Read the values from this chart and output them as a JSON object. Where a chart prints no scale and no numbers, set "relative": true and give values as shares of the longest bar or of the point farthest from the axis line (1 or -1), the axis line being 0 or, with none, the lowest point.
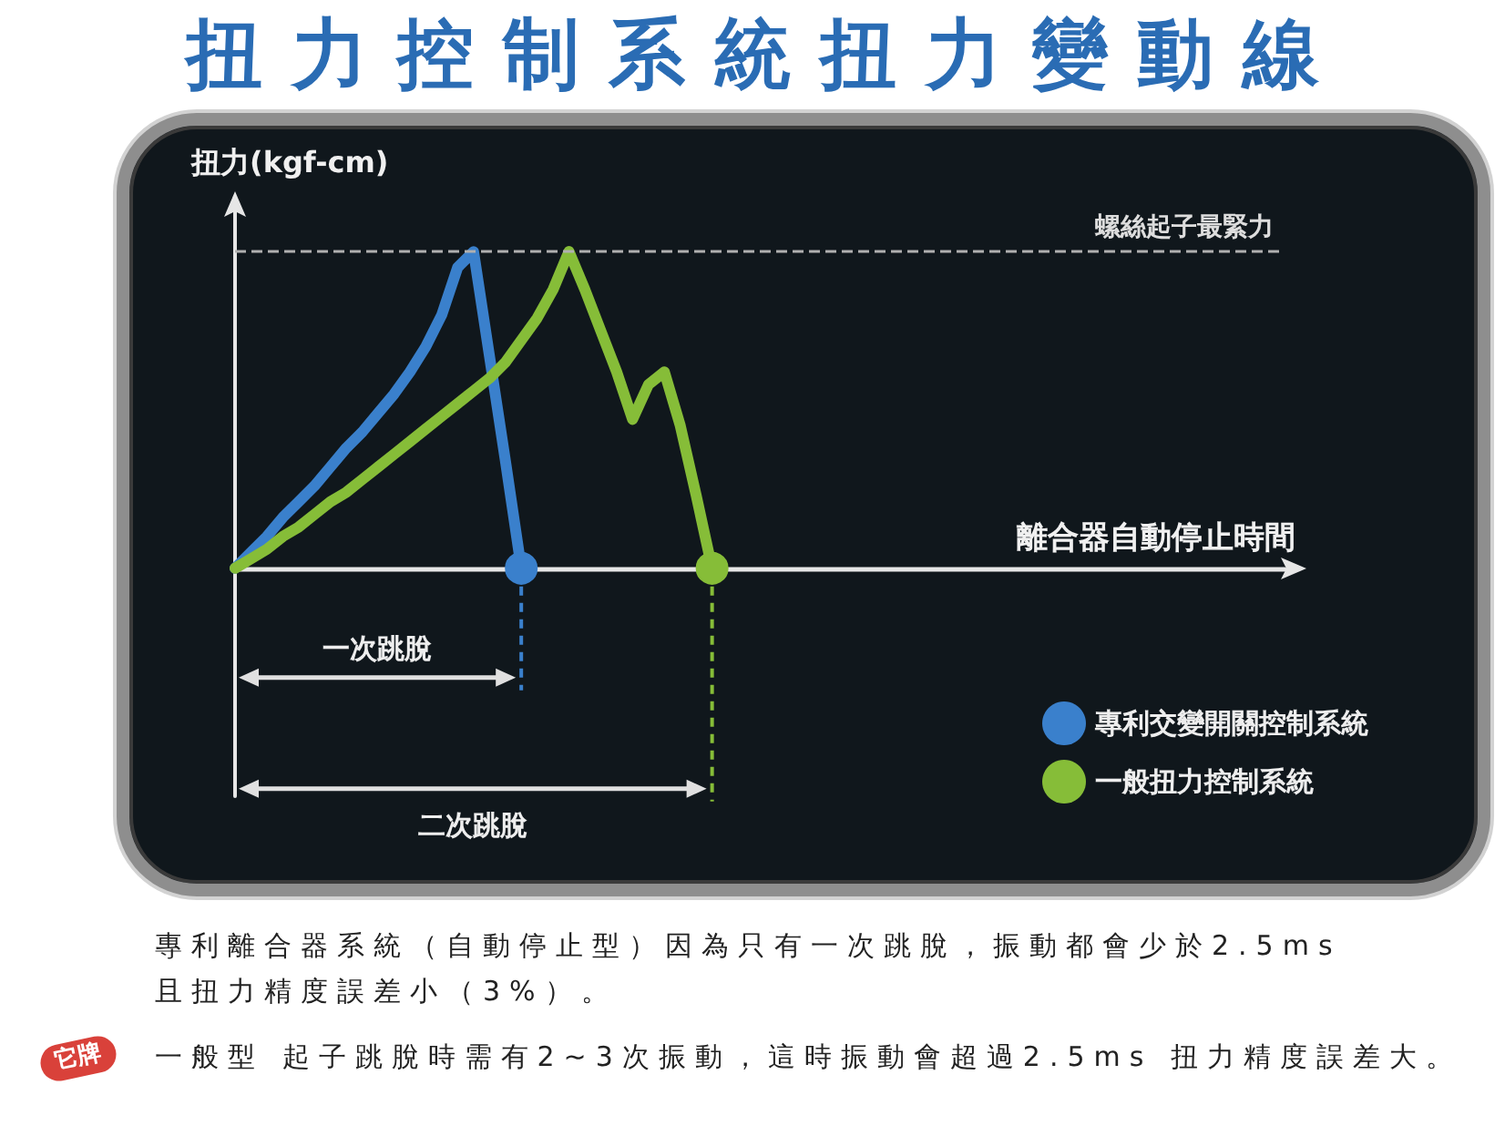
{
  "chart_data": {
    "type": "line",
    "title": "扭力控制系統扭力變動線",
    "xlabel": "離合器自動停止時間",
    "ylabel": "扭力(kgf-cm)",
    "relative": true,
    "line_style": "solid",
    "legend": "bottom right",
    "categories": [
      null,
      null,
      null,
      null,
      null,
      null,
      null,
      null,
      null,
      null,
      null,
      null,
      null,
      null,
      null,
      null,
      null,
      null,
      null,
      null,
      null,
      null,
      null,
      null,
      null,
      null,
      null,
      null,
      null,
      null,
      null,
      null,
      null,
      null,
      null,
      null,
      null,
      null,
      null,
      null,
      null,
      null,
      null,
      null,
      null,
      null,
      null,
      null,
      null,
      null,
      null,
      null,
      null,
      null,
      null,
      null,
      null,
      null,
      null,
      null,
      null,
      null,
      null,
      null,
      null,
      null,
      null
    ],
    "series": [
      {
        "name": "專利交變開關控制系統",
        "color": "#3a80cc",
        "values": [
          0,
          0.05,
          0.1,
          0.16,
          0.21,
          0.26,
          0.32,
          0.38,
          0.43,
          0.49,
          0.55,
          0.62,
          0.7,
          0.8,
          0.95,
          1,
          0.67,
          0.34,
          0,
          null,
          null,
          null,
          null,
          null,
          null,
          null,
          null,
          null,
          null,
          null,
          null,
          null,
          null,
          null,
          null,
          null,
          null,
          null,
          null,
          null,
          null,
          null,
          null,
          null,
          null,
          null,
          null,
          null,
          null,
          null,
          null,
          null,
          null,
          null,
          null,
          null,
          null,
          null,
          null,
          null,
          null,
          null,
          null,
          null,
          null,
          null,
          null
        ]
      },
      {
        "name": "一般扭力控制系統",
        "color": "#86bd38",
        "values": [
          0,
          0.03,
          0.06,
          0.1,
          0.13,
          0.17,
          0.21,
          0.24,
          0.28,
          0.32,
          0.36,
          0.4,
          0.44,
          0.48,
          0.52,
          0.56,
          0.6,
          0.65,
          0.72,
          0.79,
          0.88,
          1,
          0.88,
          0.75,
          0.62,
          0.47,
          0.58,
          0.62,
          0.45,
          0.23,
          0,
          null,
          null,
          null,
          null,
          null,
          null,
          null,
          null,
          null,
          null,
          null,
          null,
          null,
          null,
          null,
          null,
          null,
          null,
          null,
          null,
          null,
          null,
          null,
          null,
          null,
          null,
          null,
          null,
          null,
          null,
          null,
          null,
          null,
          null,
          null,
          null
        ]
      }
    ],
    "ref_lines": [
      {
        "axis": "y",
        "value": 1,
        "label": "螺絲起子最緊力",
        "color": "#b0b0b0",
        "line_style": "dashed"
      }
    ],
    "annotations": [
      "一次跳脫",
      "二次跳脫",
      "專利離合器系統（自動停止型）因為只有一次跳脫，振動都會少於2.5ms 且扭力精度誤差小（3%）。",
      "它牌",
      "一般型 起子跳脫時需有2~3次振動，這時振動會超過2.5ms 扭力精度誤差大。"
    ]
  }
}
